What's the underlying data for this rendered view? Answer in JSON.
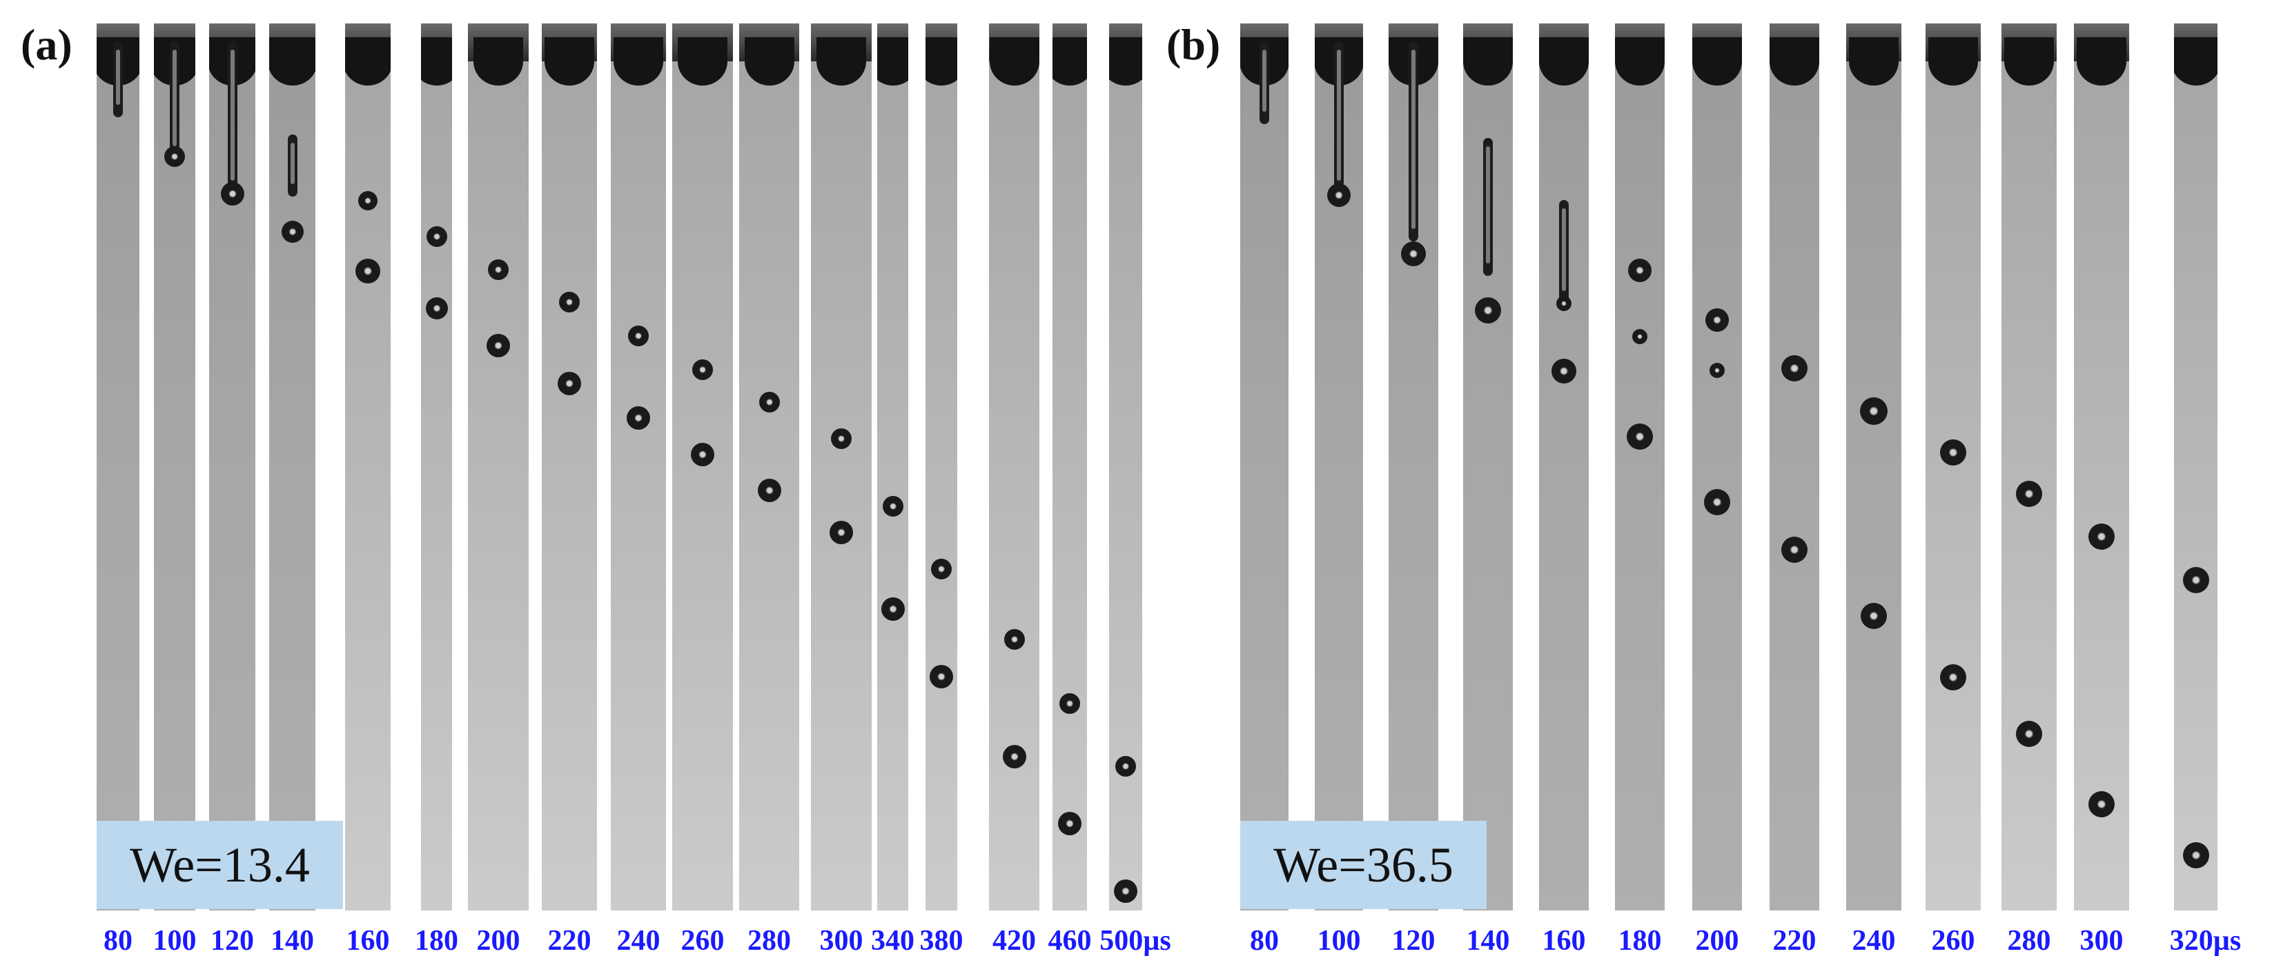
{
  "panel_a": {
    "label": "(a)",
    "we": "We=13.4",
    "times": [
      "80",
      "100",
      "120",
      "140",
      "160",
      "180",
      "200",
      "220",
      "240",
      "260",
      "280",
      "300",
      "340",
      "380",
      "420",
      "460",
      "500µs"
    ]
  },
  "panel_b": {
    "label": "(b)",
    "we": "We=36.5",
    "times": [
      "80",
      "100",
      "120",
      "140",
      "160",
      "180",
      "200",
      "220",
      "240",
      "260",
      "280",
      "300",
      "320µs"
    ]
  },
  "colors": {
    "time_labels": "#1a1aff",
    "we_box": "#bcd8ee",
    "background": "#ffffff"
  }
}
